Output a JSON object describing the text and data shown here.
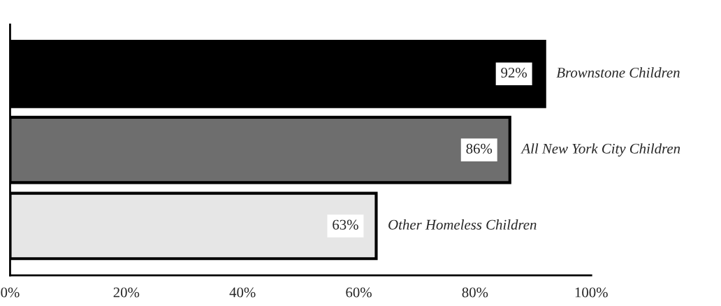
{
  "chart_data": {
    "type": "bar",
    "orientation": "horizontal",
    "categories": [
      "Brownstone Children",
      "All New York City Children",
      "Other Homeless Children"
    ],
    "values": [
      92,
      86,
      63
    ],
    "colors": [
      "#000000",
      "#6e6e6e",
      "#e6e6e6"
    ],
    "xlim": [
      0,
      100
    ],
    "xticks": [
      {
        "value": 0,
        "label": "0%"
      },
      {
        "value": 20,
        "label": "20%"
      },
      {
        "value": 40,
        "label": "40%"
      },
      {
        "value": 60,
        "label": "60%"
      },
      {
        "value": 80,
        "label": "80%"
      },
      {
        "value": 100,
        "label": "100%"
      }
    ],
    "value_labels": [
      "92%",
      "86%",
      "63%"
    ],
    "grid": false,
    "legend": false
  }
}
